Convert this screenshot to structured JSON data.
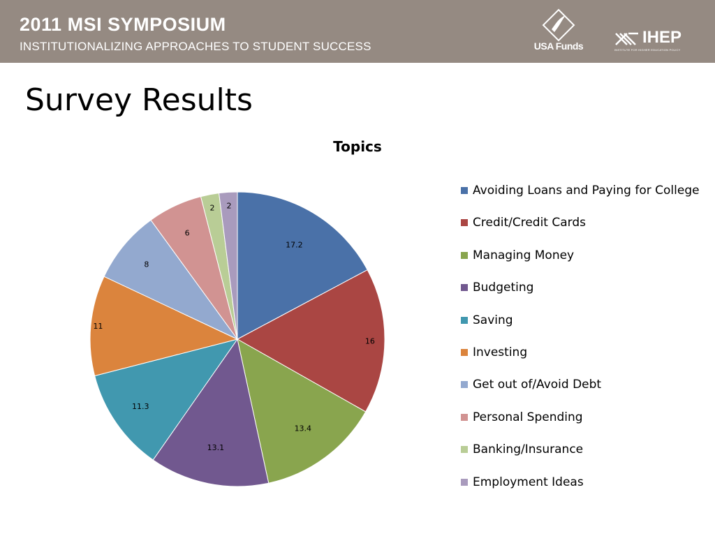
{
  "header": {
    "title": "2011 MSI SYMPOSIUM",
    "subtitle": "INSTITUTIONALIZING APPROACHES TO STUDENT SUCCESS",
    "logo_usafunds_text": "USA Funds",
    "logo_ihep_text": "IHEP",
    "logo_ihep_sub": "INSTITUTE FOR HIGHER EDUCATION POLICY"
  },
  "slide": {
    "title": "Survey Results"
  },
  "chart_data": {
    "type": "pie",
    "title": "Topics",
    "legend_position": "right",
    "categories": [
      "Avoiding Loans and Paying for College",
      "Credit/Credit Cards",
      "Managing Money",
      "Budgeting",
      "Saving",
      "Investing",
      "Get out of/Avoid Debt",
      "Personal Spending",
      "Banking/Insurance",
      "Employment Ideas"
    ],
    "values": [
      17.2,
      16,
      13.4,
      13.1,
      11.3,
      11,
      8,
      6,
      2,
      2
    ],
    "value_labels": [
      "17.2",
      "16",
      "13.4",
      "13.1",
      "11.3",
      "11",
      "8",
      "6",
      "2",
      "2"
    ],
    "colors": [
      "#4a71a8",
      "#aa4643",
      "#89a54e",
      "#71588f",
      "#4198af",
      "#db843d",
      "#93a9cf",
      "#d19392",
      "#b9cd96",
      "#a99bbd"
    ]
  }
}
